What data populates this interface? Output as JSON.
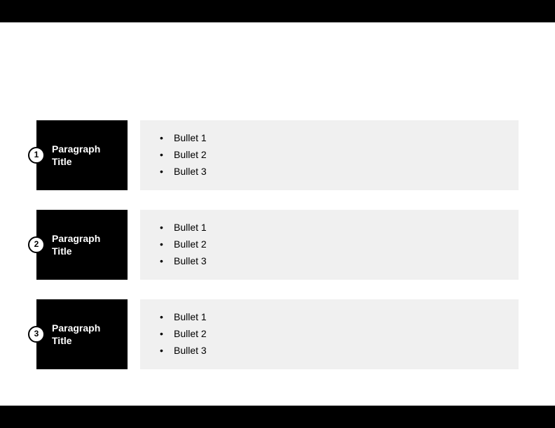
{
  "slide": {
    "type": "infographic",
    "background_color": "#ffffff",
    "top_bar_color": "#000000",
    "bottom_bar_color": "#000000",
    "title_box_bg": "#000000",
    "title_box_text_color": "#ffffff",
    "bullets_box_bg": "#f0f0f0",
    "bullets_text_color": "#000000",
    "badge_bg": "#ffffff",
    "badge_border": "#000000",
    "badge_text_color": "#000000",
    "title_fontsize": 14,
    "bullet_fontsize": 14,
    "badge_fontsize": 12,
    "rows": [
      {
        "number": "1",
        "title": "Paragraph Title",
        "bullets": [
          "Bullet 1",
          "Bullet 2",
          "Bullet 3"
        ]
      },
      {
        "number": "2",
        "title": "Paragraph Title",
        "bullets": [
          "Bullet 1",
          "Bullet 2",
          "Bullet 3"
        ]
      },
      {
        "number": "3",
        "title": "Paragraph Title",
        "bullets": [
          "Bullet 1",
          "Bullet 2",
          "Bullet 3"
        ]
      }
    ]
  }
}
